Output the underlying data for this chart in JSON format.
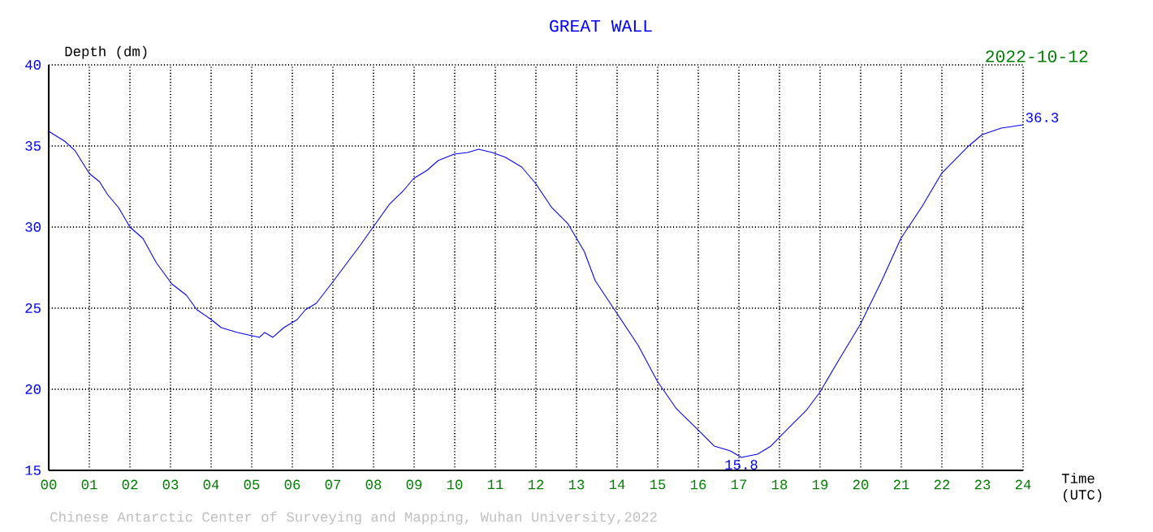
{
  "chart_data": {
    "type": "line",
    "title": "GREAT WALL",
    "xlabel": "Time (UTC)",
    "ylabel": "Depth (dm)",
    "x": [
      0,
      0.39,
      0.65,
      1.0,
      1.25,
      1.45,
      1.72,
      2.0,
      2.32,
      2.65,
      3.03,
      3.39,
      3.65,
      4.0,
      4.25,
      4.65,
      5.19,
      5.32,
      5.52,
      5.79,
      6.12,
      6.32,
      6.59,
      6.99,
      7.32,
      7.65,
      7.99,
      8.39,
      8.72,
      8.99,
      9.32,
      9.59,
      9.99,
      10.32,
      10.59,
      10.92,
      11.25,
      11.65,
      11.99,
      12.39,
      12.79,
      13.19,
      13.46,
      13.99,
      14.52,
      14.99,
      15.46,
      15.99,
      16.39,
      16.79,
      17.06,
      17.46,
      17.79,
      18.26,
      18.66,
      18.99,
      19.46,
      19.99,
      20.52,
      20.99,
      21.52,
      21.99,
      22.66,
      22.99,
      23.46,
      23.99
    ],
    "series": [
      {
        "color": "#0000ff",
        "values": [
          35.9,
          35.3,
          34.7,
          33.3,
          32.8,
          32.0,
          31.2,
          30.0,
          29.3,
          27.8,
          26.5,
          25.8,
          24.9,
          24.3,
          23.8,
          23.5,
          23.2,
          23.5,
          23.2,
          23.8,
          24.3,
          24.9,
          25.3,
          26.6,
          27.7,
          28.8,
          30.0,
          31.4,
          32.2,
          33.0,
          33.5,
          34.1,
          34.5,
          34.6,
          34.8,
          34.6,
          34.3,
          33.7,
          32.7,
          31.2,
          30.2,
          28.5,
          26.7,
          24.7,
          22.7,
          20.5,
          18.8,
          17.5,
          16.5,
          16.2,
          15.8,
          16.0,
          16.5,
          17.7,
          18.7,
          19.8,
          21.8,
          24.0,
          26.7,
          29.3,
          31.3,
          33.3,
          35.0,
          35.7,
          36.1,
          36.3
        ]
      }
    ],
    "xlim": [
      0,
      24
    ],
    "ylim": [
      15,
      40
    ],
    "xticks": [
      {
        "value": 0,
        "label": "00"
      },
      {
        "value": 1,
        "label": "01"
      },
      {
        "value": 2,
        "label": "02"
      },
      {
        "value": 3,
        "label": "03"
      },
      {
        "value": 4,
        "label": "04"
      },
      {
        "value": 5,
        "label": "05"
      },
      {
        "value": 6,
        "label": "06"
      },
      {
        "value": 7,
        "label": "07"
      },
      {
        "value": 8,
        "label": "08"
      },
      {
        "value": 9,
        "label": "09"
      },
      10,
      11,
      12,
      13,
      14,
      15,
      16,
      17,
      18,
      19,
      20,
      21,
      22,
      23,
      24
    ],
    "yticks": [
      15,
      20,
      25,
      30,
      35,
      40
    ],
    "grid": true,
    "marker": "none",
    "line_style": "solid",
    "annotations": [
      {
        "text": "15.8",
        "x": 17.06,
        "y": 15.8
      },
      {
        "text": "36.3",
        "x": 23.99,
        "y": 36.3
      },
      "2022-10-12",
      "Chinese Antarctic Center of Surveying and Mapping, Wuhan University,2022"
    ]
  }
}
